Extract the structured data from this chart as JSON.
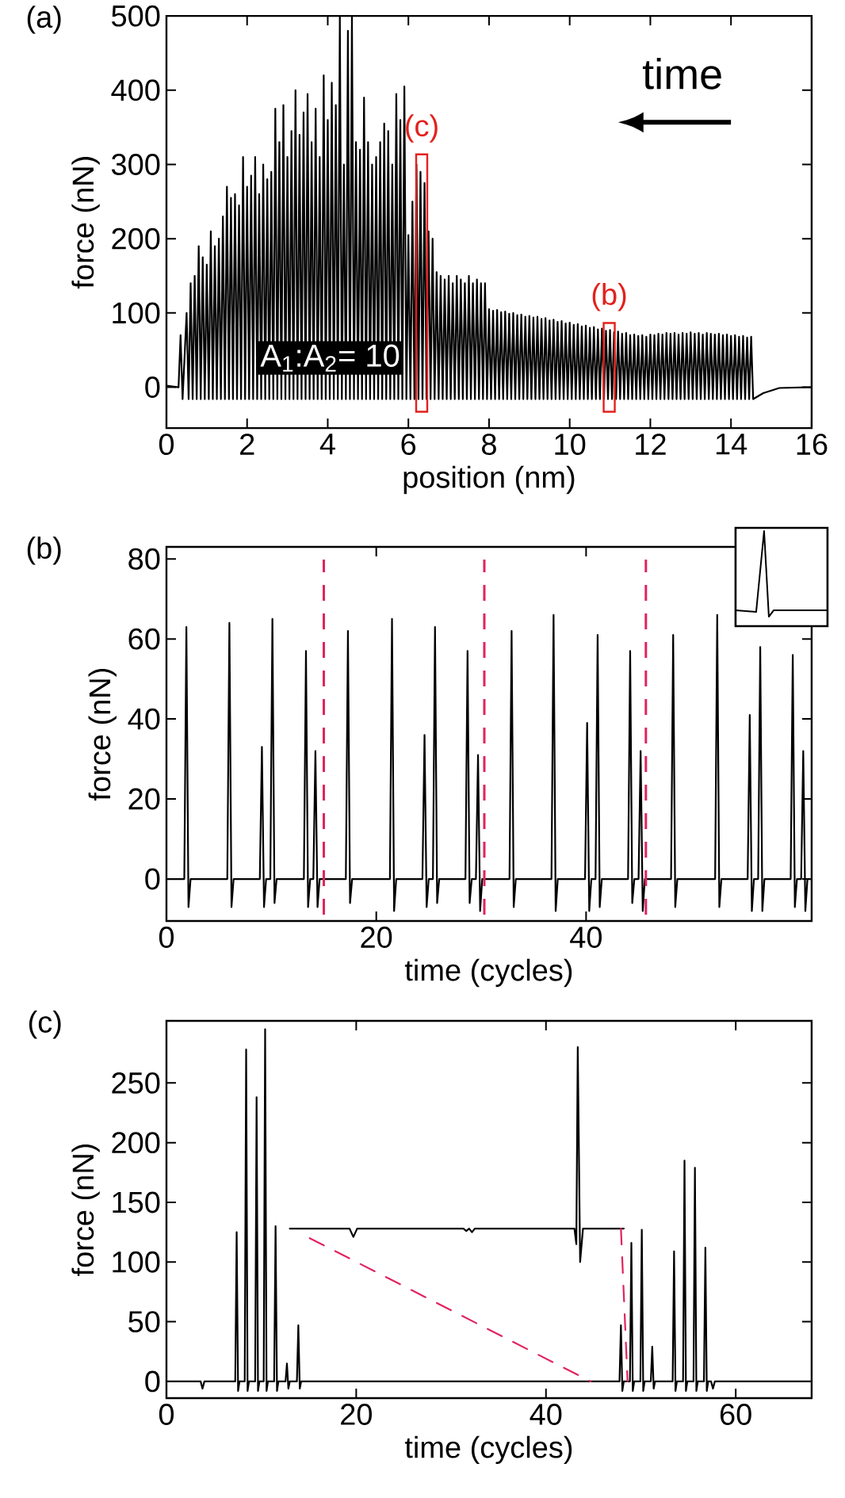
{
  "chart_data": [
    {
      "type": "line",
      "title": "(a)",
      "xlabel": "position (nm)",
      "ylabel": "force (nN)",
      "xlim": [
        0,
        16
      ],
      "ylim": [
        -55,
        500
      ],
      "xticks": [
        0,
        2,
        4,
        6,
        8,
        10,
        12,
        14,
        16
      ],
      "yticks": [
        0,
        100,
        200,
        300,
        400,
        500
      ],
      "annotations": [
        "time",
        "A$_{1}$:A$_{2}$= 10",
        {
          "text": "(c)",
          "x": 6.33,
          "y": 305
        },
        {
          "text": "(b)",
          "x": 10.98,
          "y": 78
        }
      ],
      "series": [
        {
          "color": "#000000",
          "x": [
            0,
            0.3,
            0.35,
            0.4,
            0.5,
            0.55,
            0.6,
            0.65,
            0.7,
            0.75,
            0.8,
            0.85,
            0.9,
            0.95,
            1.0,
            1.05,
            1.1,
            1.15,
            1.2,
            1.25,
            1.3,
            1.35,
            1.4,
            1.45,
            1.5,
            1.55,
            1.6,
            1.65,
            1.7,
            1.75,
            1.8,
            1.85,
            1.9,
            1.95,
            2.0,
            2.05,
            2.1,
            2.15,
            2.2,
            2.25,
            2.3,
            2.35,
            2.4,
            2.45,
            2.5,
            2.55,
            2.6,
            2.65,
            2.7,
            2.75,
            2.8,
            2.85,
            2.9,
            2.95,
            3.0,
            3.05,
            3.1,
            3.15,
            3.2,
            3.25,
            3.3,
            3.35,
            3.4,
            3.45,
            3.5,
            3.55,
            3.6,
            3.65,
            3.7,
            3.75,
            3.8,
            3.85,
            3.9,
            3.95,
            4.0,
            4.05,
            4.1,
            4.15,
            4.2,
            4.25,
            4.3,
            4.35,
            4.4,
            4.45,
            4.5,
            4.55,
            4.6,
            4.65,
            4.7,
            4.75,
            4.8,
            4.85,
            4.9,
            4.95,
            5.0,
            5.05,
            5.1,
            5.15,
            5.2,
            5.25,
            5.3,
            5.35,
            5.4,
            5.45,
            5.5,
            5.55,
            5.6,
            5.65,
            5.7,
            5.75,
            5.8,
            5.85,
            5.9,
            5.95,
            6.0,
            6.05,
            6.1,
            6.15,
            6.2,
            6.25,
            6.3,
            6.35,
            6.4,
            6.45,
            6.5,
            6.55,
            6.6,
            6.65,
            6.7,
            6.75,
            6.8,
            6.85,
            6.9,
            6.95,
            7.0,
            7.05,
            7.1,
            7.15,
            7.2,
            7.25,
            7.3,
            7.35,
            7.4,
            7.45,
            7.5,
            7.55,
            7.6,
            7.65,
            7.7,
            7.75,
            7.8,
            7.85,
            7.9,
            7.95,
            8.0,
            8.05,
            8.1,
            8.15,
            8.2,
            8.25,
            8.3,
            8.35,
            8.4,
            8.45,
            8.5,
            8.55,
            8.6,
            8.65,
            8.7,
            8.75,
            8.8,
            8.85,
            8.9,
            8.95,
            9.0,
            9.05,
            9.1,
            9.15,
            9.2,
            9.25,
            9.3,
            9.35,
            9.4,
            9.45,
            9.5,
            9.55,
            9.6,
            9.65,
            9.7,
            9.75,
            9.8,
            9.85,
            9.9,
            9.95,
            10.0,
            10.05,
            10.1,
            10.15,
            10.2,
            10.25,
            10.3,
            10.35,
            10.4,
            10.45,
            10.5,
            10.55,
            10.6,
            10.65,
            10.7,
            10.75,
            10.8,
            10.85,
            10.9,
            10.95,
            11.0,
            11.05,
            11.1,
            11.15,
            11.2,
            11.25,
            11.3,
            11.35,
            11.4,
            11.45,
            11.5,
            11.55,
            11.6,
            11.65,
            11.7,
            11.75,
            11.8,
            11.85,
            11.9,
            11.95,
            12.0,
            12.05,
            12.1,
            12.15,
            12.2,
            12.25,
            12.3,
            12.35,
            12.4,
            12.45,
            12.5,
            12.55,
            12.6,
            12.65,
            12.7,
            12.75,
            12.8,
            12.85,
            12.9,
            12.95,
            13.0,
            13.05,
            13.1,
            13.15,
            13.2,
            13.25,
            13.3,
            13.35,
            13.4,
            13.45,
            13.5,
            13.55,
            13.6,
            13.65,
            13.7,
            13.75,
            13.8,
            13.85,
            13.9,
            13.95,
            14.0,
            14.05,
            14.1,
            14.15,
            14.2,
            14.25,
            14.3,
            14.35,
            14.4,
            14.45,
            14.5,
            14.55,
            14.8,
            15.2,
            16
          ],
          "values": [
            2,
            0,
            70,
            -16,
            100,
            -16,
            140,
            -16,
            150,
            -16,
            190,
            -16,
            175,
            -16,
            165,
            -16,
            210,
            -16,
            190,
            -16,
            200,
            -16,
            230,
            -16,
            270,
            -16,
            255,
            -16,
            260,
            -16,
            245,
            -16,
            310,
            -16,
            270,
            -16,
            285,
            -16,
            310,
            -16,
            260,
            -16,
            300,
            -16,
            280,
            -16,
            290,
            -16,
            375,
            -16,
            330,
            -16,
            380,
            -16,
            310,
            -16,
            345,
            -16,
            400,
            -16,
            340,
            -16,
            370,
            -16,
            395,
            -16,
            330,
            -16,
            375,
            -16,
            310,
            -16,
            420,
            -16,
            360,
            -16,
            410,
            -16,
            380,
            -16,
            500,
            -16,
            300,
            -16,
            480,
            -16,
            500,
            -16,
            330,
            -16,
            320,
            -16,
            390,
            -16,
            330,
            -16,
            300,
            -16,
            310,
            -16,
            330,
            -16,
            355,
            -16,
            345,
            -16,
            300,
            -16,
            395,
            -16,
            360,
            -16,
            405,
            -16,
            205,
            -16,
            250,
            -16,
            300,
            -16,
            290,
            -16,
            275,
            -16,
            210,
            -16,
            200,
            -16,
            155,
            -16,
            150,
            -16,
            145,
            -16,
            150,
            -16,
            140,
            -16,
            150,
            -16,
            145,
            -16,
            140,
            -16,
            150,
            -16,
            140,
            -16,
            145,
            -16,
            140,
            -16,
            140,
            -16,
            105,
            -16,
            103,
            -16,
            104,
            -16,
            101,
            -16,
            102,
            -16,
            99,
            -16,
            100,
            -16,
            97,
            -16,
            98,
            -16,
            95,
            -16,
            96,
            -16,
            94,
            -16,
            95,
            -16,
            92,
            -16,
            93,
            -16,
            90,
            -16,
            91,
            -16,
            88,
            -16,
            89,
            -16,
            86,
            -16,
            87,
            -16,
            84,
            -16,
            85,
            -16,
            82,
            -16,
            83,
            -16,
            80,
            -16,
            81,
            -16,
            78,
            -16,
            79,
            -16,
            76,
            -16,
            77,
            -16,
            74,
            -16,
            75,
            -16,
            72,
            -16,
            73,
            -16,
            70,
            -16,
            71,
            -16,
            69,
            -16,
            70,
            -16,
            68,
            -16,
            71,
            -16,
            70,
            -16,
            72,
            -16,
            71,
            -16,
            73,
            -16,
            72,
            -16,
            73,
            -16,
            71,
            -16,
            73,
            -16,
            72,
            -16,
            74,
            -16,
            72,
            -16,
            73,
            -16,
            71,
            -16,
            73,
            -16,
            72,
            -16,
            71,
            -16,
            72,
            -16,
            70,
            -16,
            71,
            -16,
            69,
            -16,
            70,
            -16,
            68,
            -16,
            69,
            -16,
            67,
            -16,
            68,
            -16,
            -8,
            -1,
            0
          ]
        }
      ]
    },
    {
      "type": "line",
      "title": "(b)",
      "xlabel": "time (cycles)",
      "ylabel": "force (nN)",
      "xlim": [
        0,
        61.5
      ],
      "ylim": [
        -10.5,
        83
      ],
      "xticks": [
        0,
        20,
        40
      ],
      "yticks": [
        0,
        20,
        40,
        60,
        80
      ],
      "ref_lines": [
        {
          "axis": "x",
          "value": 15.0,
          "color": "#e0245e",
          "line_style": "dashed"
        },
        {
          "axis": "x",
          "value": 30.3,
          "color": "#e0245e",
          "line_style": "dashed"
        },
        {
          "axis": "x",
          "value": 45.7,
          "color": "#e0245e",
          "line_style": "dashed"
        }
      ],
      "series": [
        {
          "color": "#000000",
          "x": [
            0,
            1.7,
            1.9,
            2.1,
            2.3,
            5.8,
            6.0,
            6.2,
            6.4,
            8.9,
            9.1,
            9.3,
            9.5,
            9.9,
            10.1,
            10.3,
            10.5,
            13.1,
            13.3,
            13.5,
            13.7,
            14.0,
            14.2,
            14.4,
            14.6,
            17.1,
            17.3,
            17.5,
            17.7,
            21.3,
            21.5,
            21.7,
            21.9,
            24.4,
            24.6,
            24.8,
            25.0,
            25.4,
            25.6,
            25.8,
            26.0,
            28.5,
            28.7,
            28.9,
            29.1,
            29.5,
            29.7,
            29.9,
            30.1,
            32.7,
            32.9,
            33.1,
            33.3,
            36.7,
            36.9,
            37.1,
            37.3,
            39.9,
            40.1,
            40.3,
            40.5,
            40.9,
            41.1,
            41.3,
            41.5,
            44.0,
            44.2,
            44.4,
            44.6,
            45.0,
            45.2,
            45.4,
            45.6,
            48.1,
            48.3,
            48.5,
            48.7,
            52.3,
            52.5,
            52.7,
            52.9,
            55.4,
            55.6,
            55.8,
            56.0,
            56.4,
            56.6,
            56.8,
            57.0,
            59.5,
            59.7,
            59.9,
            60.1,
            60.5,
            60.7,
            60.9,
            61.1,
            61.5
          ],
          "values": [
            0,
            0,
            63,
            -7,
            0,
            0,
            64,
            -7,
            0,
            0,
            33,
            -7,
            0,
            0,
            65,
            -6,
            0,
            0,
            57,
            -7,
            0,
            0,
            32,
            -7,
            0,
            0,
            62,
            -6,
            0,
            0,
            65,
            -8,
            0,
            0,
            36,
            -7,
            0,
            0,
            63,
            -6,
            0,
            0,
            57,
            -6,
            0,
            0,
            31,
            -8,
            0,
            0,
            62,
            -7,
            0,
            0,
            66,
            -8,
            0,
            0,
            39,
            -8,
            0,
            0,
            61,
            -7,
            0,
            0,
            57,
            -6,
            0,
            0,
            32,
            -8,
            0,
            0,
            61,
            -7,
            0,
            0,
            66,
            -7,
            0,
            0,
            41,
            -8,
            0,
            0,
            58,
            -8,
            0,
            0,
            56,
            -7,
            0,
            0,
            32,
            -8,
            0,
            0
          ]
        }
      ]
    },
    {
      "type": "line",
      "title": "(c)",
      "xlabel": "time (cycles)",
      "ylabel": "force (nN)",
      "xlim": [
        0,
        68
      ],
      "ylim": [
        -14,
        302
      ],
      "xticks": [
        0,
        20,
        40,
        60
      ],
      "yticks": [
        0,
        50,
        100,
        150,
        200,
        250
      ],
      "series": [
        {
          "color": "#000000",
          "x": [
            0,
            3.6,
            3.8,
            4.0,
            7.25,
            7.4,
            7.55,
            7.7,
            8.25,
            8.4,
            8.55,
            8.7,
            9.35,
            9.5,
            9.65,
            9.8,
            10.25,
            10.4,
            10.55,
            10.7,
            11.35,
            11.5,
            11.65,
            11.8,
            12.55,
            12.7,
            12.85,
            13.0,
            13.75,
            13.9,
            14.05,
            14.2,
            47.75,
            47.9,
            48.05,
            48.2,
            48.85,
            49.0,
            49.15,
            49.3,
            49.95,
            50.1,
            50.25,
            50.4,
            51.05,
            51.2,
            51.35,
            51.5,
            53.35,
            53.5,
            53.65,
            53.8,
            54.45,
            54.6,
            54.75,
            54.9,
            55.55,
            55.7,
            55.85,
            56.0,
            56.65,
            56.8,
            56.95,
            57.1,
            57.4,
            57.6,
            57.8,
            68
          ],
          "values": [
            0,
            0,
            -6,
            0,
            0,
            125,
            -8,
            0,
            0,
            278,
            -8,
            0,
            0,
            238,
            -8,
            0,
            0,
            295,
            -8,
            0,
            0,
            130,
            -8,
            0,
            0,
            15,
            -6,
            0,
            0,
            47,
            -6,
            0,
            0,
            47,
            -8,
            0,
            0,
            116,
            -8,
            0,
            0,
            127,
            -8,
            0,
            0,
            29,
            -6,
            0,
            0,
            109,
            -8,
            0,
            0,
            185,
            -8,
            0,
            0,
            179,
            -8,
            0,
            0,
            112,
            -8,
            0,
            0,
            -6,
            0,
            0
          ]
        },
        {
          "color": "#000000",
          "x": [
            13.0,
            19.3,
            19.7,
            20.1,
            31.3,
            31.6,
            31.9,
            32.2,
            32.5,
            43.0,
            43.2,
            43.35,
            43.6,
            43.9,
            48.2
          ],
          "values": [
            128,
            128,
            121,
            128,
            128,
            126,
            128,
            125,
            128,
            128,
            115,
            280,
            100,
            128,
            128
          ]
        },
        {
          "color": "#e0245e",
          "line_style": "dashed",
          "x": [
            15.1,
            44.7
          ],
          "values": [
            120,
            0
          ]
        },
        {
          "color": "#e0245e",
          "line_style": "dashed",
          "x": [
            47.9,
            48.6
          ],
          "values": [
            128,
            0
          ]
        }
      ]
    }
  ]
}
